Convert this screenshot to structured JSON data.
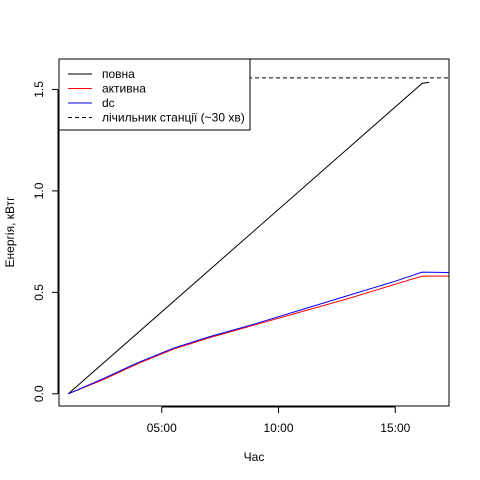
{
  "chart_data": {
    "type": "line",
    "title": "",
    "xlabel": "Час",
    "ylabel": "Енергія, кВтг",
    "xlim": [
      0.6,
      17.3
    ],
    "ylim": [
      -0.06,
      1.65
    ],
    "x_ticks": [
      {
        "value": 5,
        "label": "05:00"
      },
      {
        "value": 10,
        "label": "10:00"
      },
      {
        "value": 15,
        "label": "15:00"
      }
    ],
    "y_ticks": [
      {
        "value": 0.0,
        "label": "0.0"
      },
      {
        "value": 0.5,
        "label": "0.5"
      },
      {
        "value": 1.0,
        "label": "1.0"
      },
      {
        "value": 1.5,
        "label": "1.5"
      }
    ],
    "grid": false,
    "legend_position": "top-left",
    "series": [
      {
        "name": "повна",
        "color": "#000000",
        "dash": "solid",
        "points": [
          [
            1.0,
            0.0
          ],
          [
            16.15,
            1.53
          ],
          [
            16.45,
            1.535
          ]
        ]
      },
      {
        "name": "активна",
        "color": "#ff0000",
        "dash": "solid",
        "points": [
          [
            1.0,
            0.0
          ],
          [
            2.5,
            0.07
          ],
          [
            4.0,
            0.15
          ],
          [
            5.5,
            0.22
          ],
          [
            7.0,
            0.275
          ],
          [
            9.0,
            0.34
          ],
          [
            11.0,
            0.405
          ],
          [
            13.0,
            0.47
          ],
          [
            15.0,
            0.54
          ],
          [
            16.15,
            0.58
          ],
          [
            17.3,
            0.58
          ]
        ]
      },
      {
        "name": "dc",
        "color": "#0000ff",
        "dash": "solid",
        "points": [
          [
            1.0,
            0.0
          ],
          [
            2.5,
            0.075
          ],
          [
            4.0,
            0.155
          ],
          [
            5.5,
            0.225
          ],
          [
            7.0,
            0.28
          ],
          [
            9.0,
            0.345
          ],
          [
            11.0,
            0.415
          ],
          [
            13.0,
            0.485
          ],
          [
            15.0,
            0.555
          ],
          [
            16.15,
            0.6
          ],
          [
            17.3,
            0.598
          ]
        ]
      },
      {
        "name": "лічильник станції (~30 хв)",
        "color": "#000000",
        "dash": "dashed",
        "points": [
          [
            0.6,
            1.557
          ],
          [
            17.3,
            1.557
          ]
        ]
      }
    ]
  }
}
